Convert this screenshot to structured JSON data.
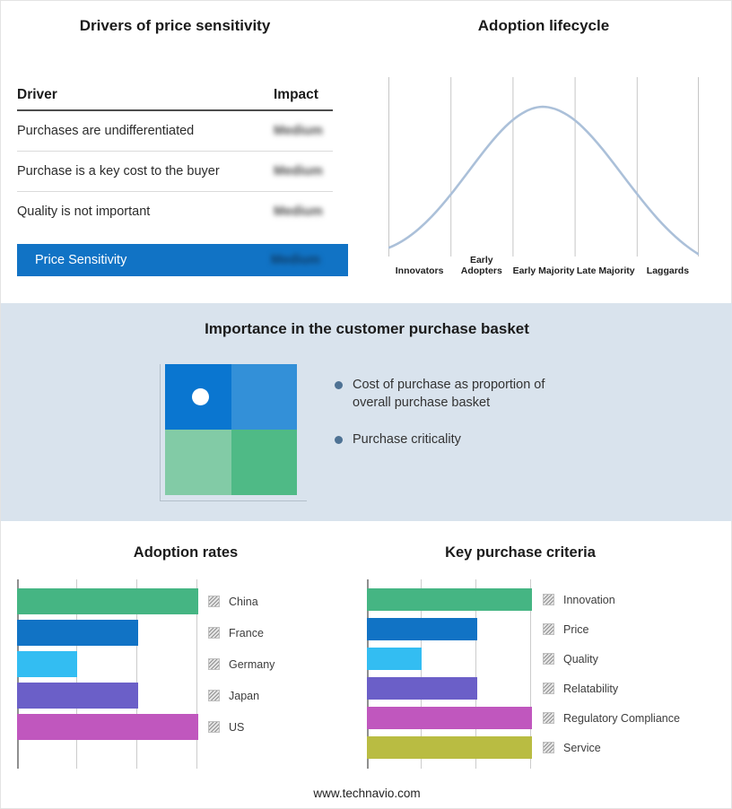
{
  "drivers_panel": {
    "title": "Drivers of price sensitivity",
    "header": {
      "driver": "Driver",
      "impact": "Impact"
    },
    "rows": [
      {
        "driver": "Purchases are undifferentiated",
        "impact": "Medium"
      },
      {
        "driver": "Purchase is a key cost to the buyer",
        "impact": "Medium"
      },
      {
        "driver": "Quality is not important",
        "impact": "Medium"
      }
    ],
    "summary_row": {
      "label": "Price Sensitivity",
      "impact": "Medium"
    },
    "summary_color": "#1173C5",
    "impact_values_obscured": true
  },
  "basket_panel": {
    "title": "Importance in the customer purchase basket",
    "bullets": [
      "Cost of purchase as proportion of overall purchase basket",
      "Purchase criticality"
    ],
    "quadrant_colors": [
      "#0A76D0",
      "#3390D8",
      "#82CBA6",
      "#4FBA86"
    ],
    "background": "#D9E3ED",
    "bullet_dot_color": "#4E7294"
  },
  "chart_data": [
    {
      "type": "line",
      "title": "Adoption lifecycle",
      "x_categories": [
        "Innovators",
        "Early Adopters",
        "Early Majority",
        "Late Majority",
        "Laggards"
      ],
      "shape": "bell curve peaking at Early Majority",
      "grid": true,
      "line_color": "#ABC0D9"
    },
    {
      "type": "bar",
      "title": "Adoption rates",
      "orientation": "horizontal",
      "categories": [
        "China",
        "France",
        "Germany",
        "Japan",
        "US"
      ],
      "values": [
        3,
        2,
        1,
        2,
        3
      ],
      "xlim": [
        0,
        3
      ],
      "value_scale_note": "relative lengths estimated from gridlines; no axis labels shown",
      "colors": [
        "#45B583",
        "#1173C5",
        "#33BDF2",
        "#6B5FC8",
        "#C057BE"
      ],
      "legend_position": "right",
      "grid": true
    },
    {
      "type": "bar",
      "title": "Key purchase criteria",
      "orientation": "horizontal",
      "categories": [
        "Innovation",
        "Price",
        "Quality",
        "Relatability",
        "Regulatory Compliance",
        "Service"
      ],
      "values": [
        3,
        2,
        1,
        2,
        3,
        3
      ],
      "xlim": [
        0,
        3
      ],
      "value_scale_note": "relative lengths estimated from gridlines; no axis labels shown",
      "colors": [
        "#45B583",
        "#1173C5",
        "#33BDF2",
        "#6B5FC8",
        "#C057BE",
        "#B9BC42"
      ],
      "legend_position": "right",
      "grid": true
    }
  ],
  "footer": {
    "text": "www.technavio.com"
  }
}
